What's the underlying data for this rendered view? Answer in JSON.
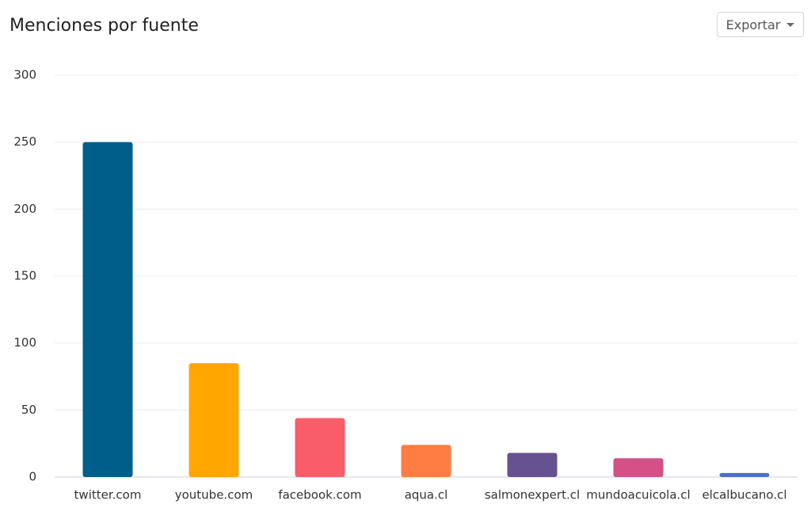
{
  "toolbar": {
    "export": "Exportar"
  },
  "chart_data": {
    "type": "bar",
    "title": "Menciones por fuente",
    "categories": [
      "twitter.com",
      "youtube.com",
      "facebook.com",
      "aqua.cl",
      "salmonexpert.cl",
      "mundoacuicola.cl",
      "elcalbucano.cl"
    ],
    "values": [
      250,
      85,
      44,
      24,
      18,
      14,
      3
    ],
    "colors": [
      "#005f8a",
      "#ffa600",
      "#f95d6a",
      "#ff7c43",
      "#665191",
      "#d45087",
      "#4c6fcf"
    ],
    "ylim": [
      0,
      300
    ],
    "yticks": [
      0,
      50,
      100,
      150,
      200,
      250,
      300
    ],
    "grid": true
  }
}
